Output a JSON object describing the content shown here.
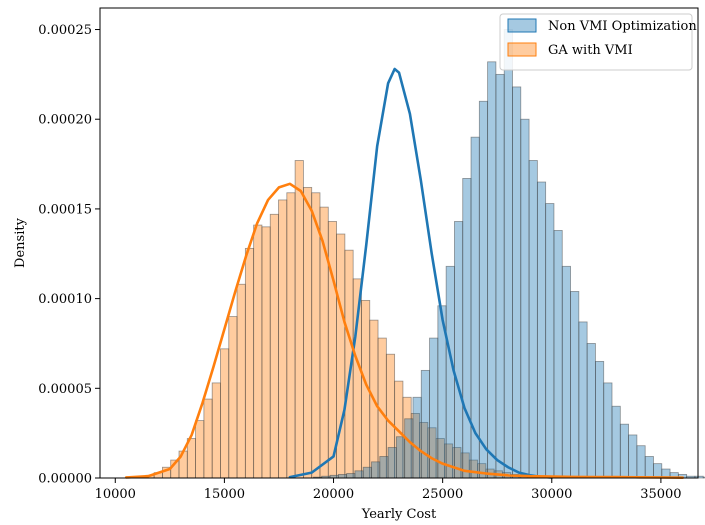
{
  "chart_data": {
    "type": "bar",
    "xlabel": "Yearly Cost",
    "ylabel": "Density",
    "xlim": [
      9300,
      36700
    ],
    "ylim": [
      0,
      0.000262
    ],
    "xticks": [
      10000,
      15000,
      20000,
      25000,
      30000,
      35000
    ],
    "xtick_labels": [
      "10000",
      "15000",
      "20000",
      "25000",
      "30000",
      "35000"
    ],
    "yticks": [
      0,
      5e-05,
      0.0001,
      0.00015,
      0.0002,
      0.00025
    ],
    "ytick_labels": [
      "0.00000",
      "0.00005",
      "0.00010",
      "0.00015",
      "0.00020",
      "0.00025"
    ],
    "grid": false,
    "legend_position": "top-right",
    "bin_width": 380,
    "series": [
      {
        "name": "Non VMI Optimization",
        "color": "#1f77b4",
        "bin_start": 16800,
        "histogram": [
          0.0,
          0.0,
          0.0,
          0.0,
          0.0,
          0.0,
          5e-07,
          1e-06,
          1.5e-06,
          2e-06,
          2.5e-06,
          4e-06,
          6e-06,
          9e-06,
          1.2e-05,
          1.7e-05,
          2.3e-05,
          3.3e-05,
          4.5e-05,
          6e-05,
          7.8e-05,
          9.6e-05,
          0.000118,
          0.000143,
          0.000167,
          0.00019,
          0.00021,
          0.000232,
          0.000225,
          0.00025,
          0.000218,
          0.0002,
          0.000177,
          0.000165,
          0.000153,
          0.000138,
          0.000118,
          0.000104,
          8.7e-05,
          7.5e-05,
          6.5e-05,
          5.3e-05,
          4e-05,
          3e-05,
          2.4e-05,
          1.8e-05,
          1.2e-05,
          8e-06,
          5e-06,
          3e-06,
          2e-06,
          1e-06,
          1e-06,
          5e-07
        ],
        "kde_x": [
          18000,
          19000,
          20000,
          20500,
          21000,
          21500,
          22000,
          22500,
          22800,
          23000,
          23500,
          24000,
          24500,
          25000,
          25500,
          26000,
          26500,
          27000,
          27500,
          28000,
          28500,
          29000,
          29500,
          30000
        ],
        "kde_y": [
          5e-07,
          3e-06,
          1.2e-05,
          3.8e-05,
          7.9e-05,
          0.00013,
          0.000185,
          0.00022,
          0.000228,
          0.000226,
          0.000203,
          0.000166,
          0.000125,
          8.8e-05,
          6e-05,
          3.9e-05,
          2.5e-05,
          1.6e-05,
          1e-05,
          6e-06,
          3e-06,
          1.5e-06,
          7e-07,
          2e-07
        ]
      },
      {
        "name": "GA with VMI",
        "color": "#ff7f0e",
        "bin_start": 11400,
        "histogram": [
          1.5e-06,
          3e-06,
          6e-06,
          1e-05,
          1.5e-05,
          2.2e-05,
          3.2e-05,
          4.4e-05,
          5.3e-05,
          7.2e-05,
          9e-05,
          0.000108,
          0.000128,
          0.000141,
          0.00014,
          0.000147,
          0.000155,
          0.000159,
          0.000177,
          0.000162,
          0.000159,
          0.000151,
          0.000143,
          0.000136,
          0.000127,
          0.000111,
          9.9e-05,
          8.8e-05,
          7.8e-05,
          6.9e-05,
          5.4e-05,
          4.5e-05,
          3.6e-05,
          3.1e-05,
          2.8e-05,
          2.2e-05,
          1.9e-05,
          1.7e-05,
          1.4e-05,
          1e-05,
          8e-06,
          5e-06,
          4e-06,
          3e-06,
          2e-06,
          1.5e-06,
          1e-06,
          1e-06
        ],
        "kde_x": [
          10500,
          11500,
          12500,
          13000,
          13500,
          14000,
          14500,
          15000,
          15500,
          16000,
          16500,
          17000,
          17500,
          18000,
          18500,
          19000,
          19500,
          20000,
          20500,
          21000,
          21500,
          22000,
          22500,
          23000,
          23500,
          24000,
          24500,
          25000,
          25500,
          26000,
          27000,
          28000,
          29000,
          30000,
          31000,
          32000,
          33000,
          34000,
          35000,
          36000
        ],
        "kde_y": [
          3e-07,
          1e-06,
          5e-06,
          1.2e-05,
          2.4e-05,
          4.2e-05,
          6.2e-05,
          8.3e-05,
          0.000104,
          0.000124,
          0.000142,
          0.000155,
          0.000162,
          0.000164,
          0.00016,
          0.000149,
          0.000132,
          0.00011,
          8.7e-05,
          6.8e-05,
          5.2e-05,
          4e-05,
          3.2e-05,
          2.6e-05,
          2e-05,
          1.5e-05,
          1.1e-05,
          8e-06,
          6e-06,
          4e-06,
          2.5e-06,
          1.5e-06,
          1e-06,
          8e-07,
          6e-07,
          5e-07,
          5e-07,
          4e-07,
          3e-07,
          2e-07
        ]
      }
    ]
  }
}
